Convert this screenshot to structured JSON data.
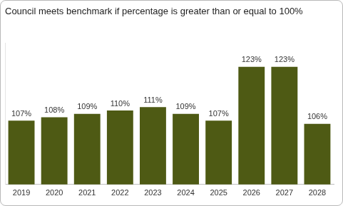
{
  "chart_data": {
    "type": "bar",
    "title": "Council meets benchmark if percentage is greater than or equal to 100%",
    "categories": [
      "2019",
      "2020",
      "2021",
      "2022",
      "2023",
      "2024",
      "2025",
      "2026",
      "2027",
      "2028"
    ],
    "values": [
      107,
      108,
      109,
      110,
      111,
      109,
      107,
      123,
      123,
      106
    ],
    "value_labels": [
      "107%",
      "108%",
      "109%",
      "110%",
      "111%",
      "109%",
      "107%",
      "123%",
      "123%",
      "106%"
    ],
    "color": "#4e5a14",
    "ylim": [
      88,
      130
    ],
    "grid": false,
    "data_labels": true,
    "tick_labels": "x"
  }
}
